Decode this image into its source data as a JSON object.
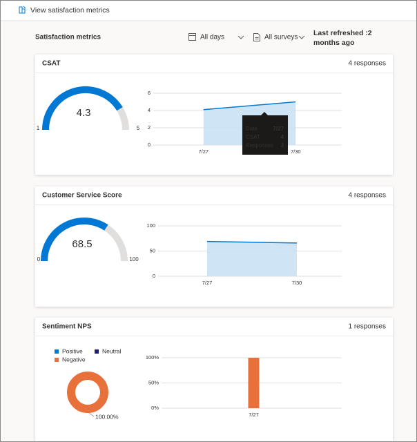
{
  "header": {
    "title": "View satisfaction metrics"
  },
  "toolbar": {
    "title": "Satisfaction metrics",
    "days_filter": "All days",
    "survey_filter": "All surveys",
    "last_refreshed": "Last refreshed :2 months ago"
  },
  "cards": [
    {
      "title": "CSAT",
      "responses": "4 responses",
      "gauge": {
        "value": 4.3,
        "min": 1,
        "max": 5,
        "color": "#0078d4"
      },
      "chart_data": {
        "type": "area",
        "categories": [
          "7/27",
          "7/30"
        ],
        "values": [
          4.1,
          5
        ],
        "color": "#0078d4",
        "ylim": [
          0,
          6
        ],
        "yticks": [
          0,
          2,
          4,
          6
        ],
        "grid": true
      },
      "tooltip": {
        "rows": [
          [
            "Date",
            "7/27"
          ],
          [
            "CSAT",
            4
          ],
          [
            "Responses",
            3
          ]
        ]
      }
    },
    {
      "title": "Customer Service Score",
      "responses": "4 responses",
      "gauge": {
        "value": 68.5,
        "min": 0,
        "max": 100,
        "color": "#0078d4"
      },
      "chart_data": {
        "type": "area",
        "categories": [
          "7/27",
          "7/30"
        ],
        "values": [
          69,
          66
        ],
        "color": "#0078d4",
        "ylim": [
          0,
          100
        ],
        "yticks": [
          0,
          50,
          100
        ],
        "grid": true
      }
    },
    {
      "title": "Sentiment NPS",
      "responses": "1 responses",
      "donut": {
        "type": "pie",
        "categories": [
          "Positive",
          "Neutral",
          "Negative"
        ],
        "values": [
          0,
          0,
          100
        ],
        "colors": [
          "#0078d4",
          "#1b1f6e",
          "#e8703a"
        ],
        "value_labels": [
          null,
          null,
          "100.00%"
        ]
      },
      "chart_data": {
        "type": "bar",
        "categories": [
          "7/27"
        ],
        "values": [
          100
        ],
        "color": "#e8703a",
        "ylim": [
          0,
          100
        ],
        "yticks": [
          {
            "value": 0,
            "label": "0%"
          },
          {
            "value": 50,
            "label": "50%"
          },
          {
            "value": 100,
            "label": "100%"
          }
        ],
        "grid": true
      }
    }
  ]
}
